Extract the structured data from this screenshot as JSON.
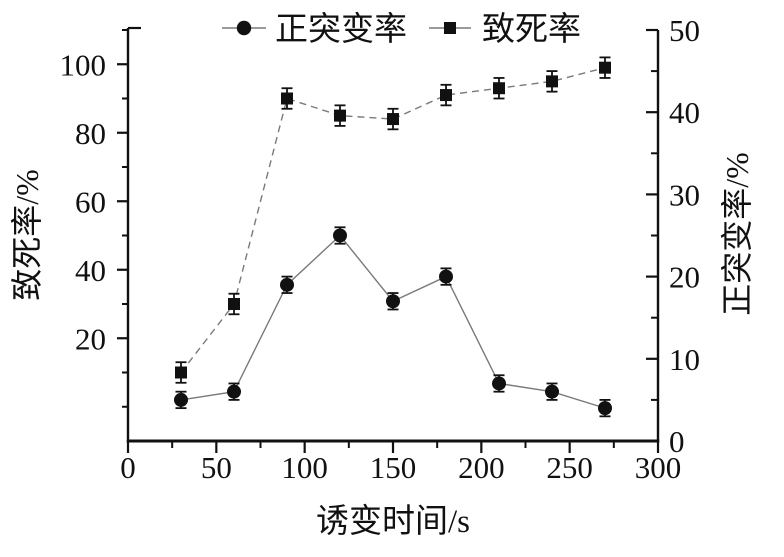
{
  "chart_data": {
    "type": "line",
    "x": [
      30,
      60,
      90,
      120,
      150,
      180,
      210,
      240,
      270
    ],
    "series": [
      {
        "key": "positive-mutation-rate",
        "name": "正突变率",
        "marker": "circle",
        "axis": "right",
        "line_style": "solid",
        "values": [
          5,
          6,
          19,
          25,
          17,
          20,
          7,
          6,
          4
        ],
        "error": 1
      },
      {
        "key": "lethality-rate",
        "name": "致死率",
        "marker": "square",
        "axis": "left",
        "line_style": "dashed",
        "values": [
          10,
          30,
          90,
          85,
          84,
          91,
          93,
          95,
          99
        ],
        "error": 3
      }
    ],
    "xlabel": "诱变时间/s",
    "ylabel_left": "致死率/%",
    "ylabel_right": "正突变率/%",
    "xlim": [
      0,
      300
    ],
    "x_major_ticks": [
      0,
      50,
      100,
      150,
      200,
      250,
      300
    ],
    "x_minor_ticks": [
      25,
      75,
      125,
      175,
      225,
      275
    ],
    "ylim_left": [
      -10,
      110
    ],
    "left_major_ticks": [
      20,
      40,
      60,
      80,
      100
    ],
    "left_minor_ticks": [
      0,
      10,
      30,
      50,
      70,
      90,
      110
    ],
    "ylim_right": [
      0,
      50
    ],
    "right_major_ticks": [
      0,
      10,
      20,
      30,
      40,
      50
    ],
    "right_minor_ticks": [
      5,
      15,
      25,
      35,
      45
    ],
    "grid": false,
    "legend_position": "top-center",
    "legend": [
      {
        "label": "正突变率",
        "marker": "circle"
      },
      {
        "label": "致死率",
        "marker": "square"
      }
    ],
    "colors": {
      "ink": "#111111",
      "series_line": "#7a7a7a",
      "background": "#ffffff"
    }
  }
}
